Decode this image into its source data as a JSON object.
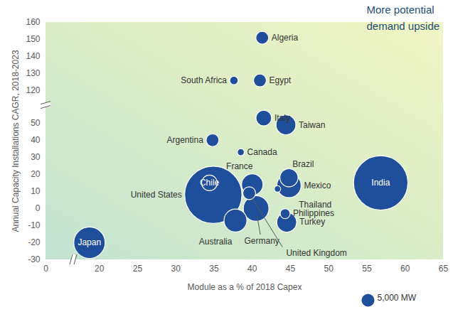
{
  "chart_data": {
    "type": "bubble",
    "x_label": "Module as a % of 2018 Capex",
    "y_label": "Annual Capacity Installations CAGR, 2018-2023",
    "annotation": "More potential\ndemand upside",
    "color": "#1f4e9b",
    "xlim": [
      0,
      65
    ],
    "xticks": [
      0,
      20,
      25,
      30,
      35,
      40,
      45,
      50,
      55,
      60,
      65
    ],
    "ylim": [
      -30,
      160
    ],
    "yticks": [
      -30,
      -20,
      -10,
      0,
      10,
      20,
      30,
      40,
      50,
      120,
      130,
      140,
      150,
      160
    ],
    "size_legend": {
      "value": 5000,
      "label": "5,000 MW"
    },
    "points": [
      {
        "name": "Algeria",
        "x": 41.3,
        "y": 151,
        "size": 5000
      },
      {
        "name": "Egypt",
        "x": 41,
        "y": 126,
        "size": 5000
      },
      {
        "name": "South Africa",
        "x": 37.6,
        "y": 126,
        "size": 2200
      },
      {
        "name": "Italy",
        "x": 41.5,
        "y": 53,
        "size": 7500
      },
      {
        "name": "Taiwan",
        "x": 44.4,
        "y": 49,
        "size": 12000
      },
      {
        "name": "Argentina",
        "x": 34.8,
        "y": 40,
        "size": 5000
      },
      {
        "name": "Canada",
        "x": 38.5,
        "y": 33,
        "size": 1500
      },
      {
        "name": "India",
        "x": 56.8,
        "y": 15,
        "size": 90000
      },
      {
        "name": "United States",
        "x": 34.9,
        "y": 8,
        "size": 100000
      },
      {
        "name": "Chile",
        "x": 34.4,
        "y": 15,
        "size": 7500
      },
      {
        "name": "France",
        "x": 40,
        "y": 14,
        "size": 14000
      },
      {
        "name": "Brazil",
        "x": 44.8,
        "y": 18,
        "size": 10000
      },
      {
        "name": "Mexico",
        "x": 44.8,
        "y": 13.5,
        "size": 18000
      },
      {
        "name": "Thailand",
        "x": 43.3,
        "y": 11.5,
        "size": 1250
      },
      {
        "name": "Germany",
        "x": 40.5,
        "y": 0,
        "size": 20000
      },
      {
        "name": "Australia",
        "x": 37.8,
        "y": -7,
        "size": 16000
      },
      {
        "name": "United Kingdom",
        "x": 39.6,
        "y": 9,
        "size": 5000
      },
      {
        "name": "Philippines",
        "x": 44.3,
        "y": -3,
        "size": 3000
      },
      {
        "name": "Turkey",
        "x": 44.5,
        "y": -8,
        "size": 12000
      },
      {
        "name": "Japan",
        "x": 18.7,
        "y": -20,
        "size": 30000
      }
    ]
  }
}
